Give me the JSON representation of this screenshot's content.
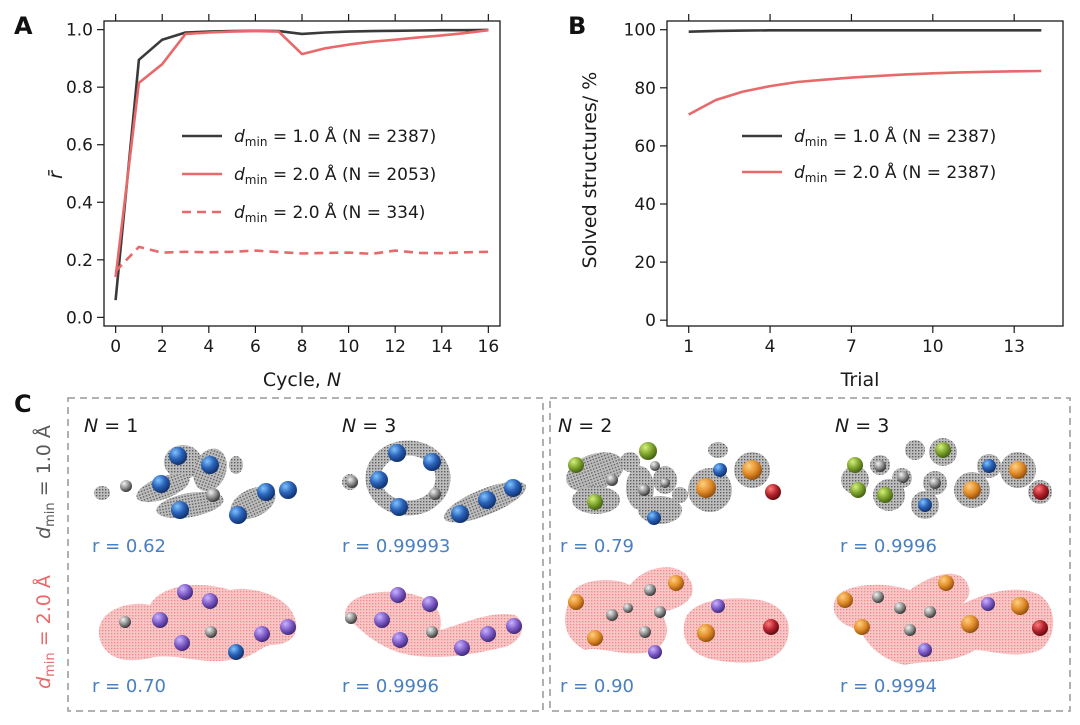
{
  "colors": {
    "dark": "#3a3a3a",
    "red": "#e8696a",
    "blue_text": "#4a7fc0",
    "gray_text": "#5a5a5a",
    "red_text": "#e8696a"
  },
  "chart_data": [
    {
      "panel": "A",
      "type": "line",
      "xlabel": "Cycle, N",
      "ylabel": "r̄",
      "xlim": [
        -0.5,
        16.5
      ],
      "ylim": [
        -0.03,
        1.03
      ],
      "xticks": [
        0,
        2,
        4,
        6,
        8,
        10,
        12,
        14,
        16
      ],
      "yticks": [
        "0.0",
        "0.2",
        "0.4",
        "0.6",
        "0.8",
        "1.0"
      ],
      "legend_position": "center-right",
      "series": [
        {
          "name_prefix": "d",
          "name_sub": "min",
          "name_suffix": " = 1.0 Å (N = 2387)",
          "color": "#3a3a3a",
          "dashed": false,
          "x": [
            0,
            1,
            2,
            3,
            4,
            5,
            6,
            7,
            8,
            9,
            10,
            11,
            12,
            13,
            14,
            15,
            16
          ],
          "y": [
            0.06,
            0.895,
            0.965,
            0.99,
            0.993,
            0.995,
            0.996,
            0.995,
            0.985,
            0.99,
            0.993,
            0.995,
            0.996,
            0.997,
            0.998,
            0.998,
            0.999
          ]
        },
        {
          "name_prefix": "d",
          "name_sub": "min",
          "name_suffix": " = 2.0 Å (N = 2053)",
          "color": "#e8696a",
          "dashed": false,
          "x": [
            0,
            1,
            2,
            3,
            4,
            5,
            6,
            7,
            8,
            9,
            10,
            11,
            12,
            13,
            14,
            15,
            16
          ],
          "y": [
            0.14,
            0.815,
            0.88,
            0.985,
            0.99,
            0.993,
            0.995,
            0.993,
            0.915,
            0.935,
            0.948,
            0.958,
            0.965,
            0.973,
            0.98,
            0.988,
            0.998
          ]
        },
        {
          "name_prefix": "d",
          "name_sub": "min",
          "name_suffix": " = 2.0 Å (N = 334)",
          "color": "#e8696a",
          "dashed": true,
          "x": [
            0,
            1,
            2,
            3,
            4,
            5,
            6,
            7,
            8,
            9,
            10,
            11,
            12,
            13,
            14,
            15,
            16
          ],
          "y": [
            0.16,
            0.245,
            0.225,
            0.228,
            0.226,
            0.228,
            0.232,
            0.227,
            0.222,
            0.224,
            0.225,
            0.221,
            0.232,
            0.224,
            0.223,
            0.226,
            0.228
          ]
        }
      ]
    },
    {
      "panel": "B",
      "type": "line",
      "xlabel": "Trial",
      "ylabel": "Solved structures/ %",
      "xlim": [
        0.2,
        14.8
      ],
      "ylim": [
        -2,
        103
      ],
      "xticks": [
        1,
        4,
        7,
        10,
        13
      ],
      "yticks": [
        "0",
        "20",
        "40",
        "60",
        "80",
        "100"
      ],
      "legend_position": "center-right",
      "series": [
        {
          "name_prefix": "d",
          "name_sub": "min",
          "name_suffix": " = 1.0 Å (N = 2387)",
          "color": "#3a3a3a",
          "dashed": false,
          "x": [
            1,
            2,
            3,
            4,
            5,
            6,
            7,
            8,
            9,
            10,
            11,
            12,
            13,
            14
          ],
          "y": [
            99.3,
            99.6,
            99.7,
            99.8,
            99.8,
            99.8,
            99.8,
            99.8,
            99.8,
            99.8,
            99.8,
            99.8,
            99.8,
            99.8
          ]
        },
        {
          "name_prefix": "d",
          "name_sub": "min",
          "name_suffix": " = 2.0 Å (N = 2387)",
          "color": "#e8696a",
          "dashed": false,
          "x": [
            1,
            2,
            3,
            4,
            5,
            6,
            7,
            8,
            9,
            10,
            11,
            12,
            13,
            14
          ],
          "y": [
            70.8,
            75.8,
            78.7,
            80.6,
            82.0,
            82.8,
            83.5,
            84.1,
            84.6,
            85.0,
            85.3,
            85.5,
            85.7,
            85.8
          ]
        }
      ]
    }
  ],
  "panel_c": {
    "letter": "C",
    "row_labels": [
      {
        "prefix": "d",
        "sub": "min",
        "suffix": " = 1.0 Å"
      },
      {
        "prefix": "d",
        "sub": "min",
        "suffix": " = 2.0 Å"
      }
    ],
    "columns": [
      {
        "label_var": "N",
        "label_rest": " = 1",
        "r_top": "r = 0.62",
        "r_bottom": "r = 0.70"
      },
      {
        "label_var": "N",
        "label_rest": " = 3",
        "r_top": "r = 0.99993",
        "r_bottom": "r = 0.9996"
      },
      {
        "label_var": "N",
        "label_rest": " = 2",
        "r_top": "r = 0.79",
        "r_bottom": "r = 0.90"
      },
      {
        "label_var": "N",
        "label_rest": " = 3",
        "r_top": "r = 0.9996",
        "r_bottom": "r = 0.9994"
      }
    ]
  },
  "panel_letters": {
    "a": "A",
    "b": "B"
  }
}
